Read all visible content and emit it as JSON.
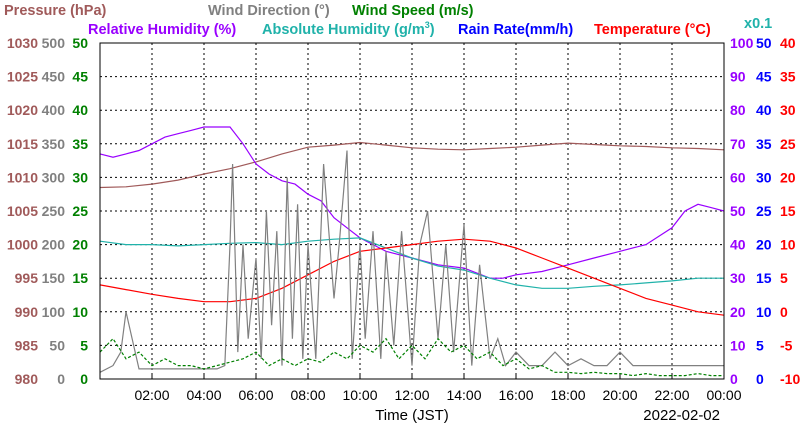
{
  "chart_data": {
    "type": "line",
    "date": "2022-02-02",
    "xlabel": "Time (JST)",
    "x_ticks": [
      "02:00",
      "04:00",
      "06:00",
      "08:00",
      "10:00",
      "12:00",
      "14:00",
      "16:00",
      "18:00",
      "20:00",
      "22:00",
      "00:00"
    ],
    "axes": {
      "pressure": {
        "ticks": [
          980,
          985,
          990,
          995,
          1000,
          1005,
          1010,
          1015,
          1020,
          1025,
          1030
        ],
        "color": "#a05a5a"
      },
      "wind_direction": {
        "ticks": [
          0,
          50,
          100,
          150,
          200,
          250,
          300,
          350,
          400,
          450,
          500
        ],
        "color": "#808080"
      },
      "wind_speed": {
        "ticks": [
          0,
          5,
          10,
          15,
          20,
          25,
          30,
          35,
          40,
          45,
          50
        ],
        "color": "#008000"
      },
      "relative_humidity": {
        "ticks": [
          0,
          10,
          20,
          30,
          40,
          50,
          60,
          70,
          80,
          90,
          100
        ],
        "color": "#9900ff"
      },
      "rain_rate": {
        "ticks": [
          0,
          5,
          10,
          15,
          20,
          25,
          30,
          35,
          40,
          45,
          50
        ],
        "color": "#0000ff"
      },
      "temperature": {
        "ticks": [
          -10,
          -5,
          0,
          5,
          10,
          15,
          20,
          25,
          30,
          35,
          40
        ],
        "color": "#ff0000"
      }
    },
    "legend_row1": [
      {
        "text": "Pressure (hPa)",
        "color": "#a05a5a"
      },
      {
        "text": "Wind Direction (°)",
        "color": "#808080"
      },
      {
        "text": "Wind Speed (m/s)",
        "color": "#008000"
      }
    ],
    "legend_row2": [
      {
        "text": "Relative Humidity (%)",
        "color": "#9900ff"
      },
      {
        "text": "Absolute Humidity (g/m",
        "sup": "3",
        "close": ")",
        "color": "#20b2aa"
      },
      {
        "text": "Rain Rate(mm/h)",
        "color": "#0000ff"
      },
      {
        "text": "Temperature (°C)",
        "color": "#ff0000"
      }
    ],
    "abs_humidity_scale": {
      "text": "x0.1",
      "color": "#20b2aa"
    },
    "series": [
      {
        "name": "Pressure (hPa)",
        "color": "#a05a5a",
        "axis": "pressure",
        "x": [
          0,
          1,
          2,
          3,
          4,
          5,
          6,
          7,
          8,
          9,
          10,
          11,
          12,
          13,
          14,
          15,
          16,
          17,
          18,
          19,
          20,
          21,
          22,
          23,
          24
        ],
        "y": [
          1008.5,
          1008.6,
          1009,
          1009.6,
          1010.5,
          1011.3,
          1012.3,
          1013.5,
          1014.5,
          1014.8,
          1015.2,
          1014.8,
          1014.4,
          1014.2,
          1014.1,
          1014.3,
          1014.5,
          1014.8,
          1015.1,
          1014.9,
          1014.7,
          1014.6,
          1014.4,
          1014.3,
          1014.1
        ]
      },
      {
        "name": "Relative Humidity (%)",
        "color": "#9900ff",
        "axis": "relative_humidity",
        "x": [
          0,
          0.5,
          1,
          1.5,
          2,
          2.5,
          3,
          3.5,
          4,
          4.5,
          5,
          5.5,
          6,
          6.5,
          7,
          7.5,
          8,
          8.5,
          9,
          9.5,
          10,
          10.5,
          11,
          12,
          13,
          14,
          15,
          15.5,
          16,
          17,
          18,
          19,
          20,
          21,
          22,
          22.5,
          23,
          23.5,
          24
        ],
        "y": [
          67,
          66,
          67,
          68,
          70,
          72,
          73,
          74,
          75,
          75,
          75,
          70,
          64,
          61,
          59,
          58,
          55,
          53,
          48,
          45,
          42,
          40,
          38,
          36,
          34,
          33,
          30,
          30,
          31,
          32,
          34,
          36,
          38,
          40,
          45,
          50,
          52,
          51,
          50
        ]
      },
      {
        "name": "Absolute Humidity (g/m3)",
        "color": "#20b2aa",
        "axis": "wind_speed",
        "x": [
          0,
          1,
          2,
          3,
          4,
          5,
          6,
          7,
          8,
          9,
          10,
          11,
          12,
          13,
          14,
          15,
          16,
          17,
          18,
          19,
          20,
          21,
          22,
          23,
          24
        ],
        "y": [
          20.5,
          20,
          20,
          19.8,
          20,
          20.2,
          20.3,
          20,
          20.5,
          20.8,
          21,
          19.5,
          18,
          16.8,
          16.2,
          15,
          14,
          13.5,
          13.5,
          13.8,
          14,
          14.3,
          14.6,
          15,
          15
        ]
      },
      {
        "name": "Temperature (°C)",
        "color": "#ff0000",
        "axis": "temperature",
        "x": [
          0,
          1,
          2,
          3,
          4,
          5,
          6,
          7,
          8,
          9,
          10,
          11,
          12,
          13,
          14,
          15,
          16,
          17,
          18,
          19,
          20,
          21,
          22,
          23,
          24
        ],
        "y": [
          4,
          3.3,
          2.6,
          2,
          1.5,
          1.5,
          2,
          3.5,
          5.5,
          7.5,
          9,
          9.5,
          10,
          10.5,
          10.8,
          10.5,
          9.5,
          8,
          6.5,
          5,
          3.5,
          2,
          1,
          0,
          -0.5
        ]
      },
      {
        "name": "Wind Direction (°)",
        "color": "#808080",
        "axis": "wind_direction",
        "x": [
          0,
          0.5,
          0.8,
          1,
          1.5,
          2,
          2.5,
          3,
          3.5,
          4,
          4.5,
          4.8,
          5,
          5.1,
          5.3,
          5.5,
          5.7,
          6,
          6.2,
          6.4,
          6.6,
          6.8,
          7,
          7.2,
          7.4,
          7.6,
          7.8,
          8,
          8.3,
          8.6,
          9,
          9.2,
          9.5,
          9.7,
          10,
          10.2,
          10.5,
          10.8,
          11,
          11.3,
          11.6,
          12,
          12.3,
          12.6,
          13,
          13.3,
          13.6,
          14,
          14.3,
          14.6,
          15,
          15.3,
          15.6,
          16,
          16.5,
          17,
          17.5,
          18,
          18.5,
          19,
          19.5,
          20,
          20.5,
          21,
          21.5,
          22,
          22.5,
          23,
          23.5,
          24
        ],
        "y": [
          10,
          20,
          40,
          100,
          15,
          15,
          15,
          15,
          15,
          15,
          15,
          20,
          200,
          320,
          40,
          200,
          60,
          180,
          30,
          250,
          80,
          220,
          20,
          300,
          60,
          260,
          30,
          200,
          30,
          320,
          120,
          200,
          340,
          30,
          200,
          60,
          220,
          30,
          190,
          50,
          220,
          20,
          200,
          250,
          60,
          200,
          40,
          230,
          20,
          170,
          30,
          60,
          20,
          40,
          20,
          20,
          40,
          20,
          30,
          20,
          20,
          40,
          20,
          20,
          20,
          20,
          20,
          20,
          20,
          20
        ]
      },
      {
        "name": "Wind Speed (m/s)",
        "color": "#008000",
        "axis": "wind_speed",
        "x": [
          0,
          0.5,
          1,
          1.5,
          2,
          2.5,
          3,
          3.5,
          4,
          4.5,
          5,
          5.5,
          6,
          6.5,
          7,
          7.5,
          8,
          8.5,
          9,
          9.5,
          10,
          10.5,
          11,
          11.5,
          12,
          12.5,
          13,
          13.5,
          14,
          14.5,
          15,
          15.5,
          16,
          16.5,
          17,
          17.5,
          18,
          18.5,
          19,
          19.5,
          20,
          20.5,
          21,
          21.5,
          22,
          22.5,
          23,
          23.5,
          24
        ],
        "y": [
          4,
          6,
          3,
          4,
          2,
          3,
          2,
          2,
          1.5,
          2,
          2.5,
          3,
          4,
          2,
          3,
          2,
          3,
          2.5,
          4,
          3,
          5,
          4,
          6,
          3,
          5,
          3,
          6,
          4,
          5,
          3,
          4,
          2,
          3,
          1.5,
          2,
          1,
          1,
          0.8,
          1,
          0.8,
          0.8,
          0.5,
          0.8,
          0.5,
          0.5,
          0.5,
          0.8,
          0.5,
          0.5
        ]
      }
    ]
  }
}
